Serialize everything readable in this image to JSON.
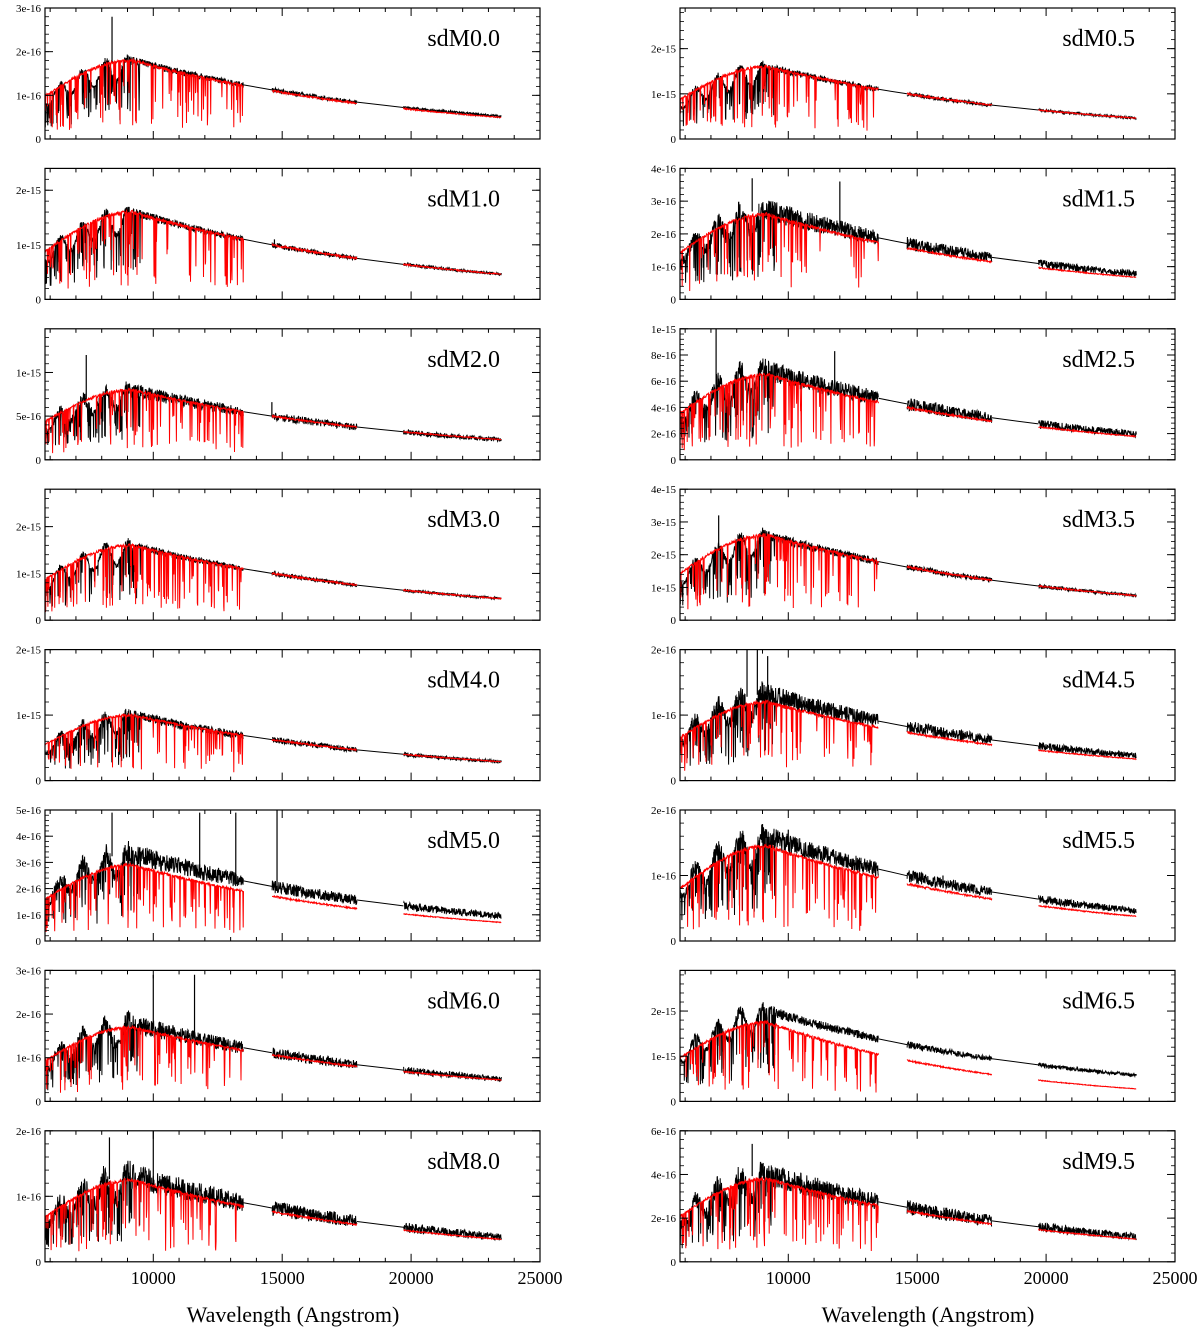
{
  "chart_data": {
    "type": "line",
    "xlabel": "Wavelength (Angstrom)",
    "xlim": [
      5800,
      25000
    ],
    "x_ticks": [
      10000,
      15000,
      20000,
      25000
    ],
    "x_tick_labels": [
      "10000",
      "15000",
      "20000",
      "25000"
    ],
    "series_colors": {
      "observed": "#000000",
      "model": "#ff0000"
    },
    "panels": [
      {
        "label": "sdM0.0",
        "column": "left",
        "ylim": [
          0,
          3e-16
        ],
        "y_ticks": [
          0,
          1e-16,
          2e-16,
          3e-16
        ],
        "y_tick_labels": [
          "0",
          "1e-16",
          "2e-16",
          "3e-16"
        ],
        "peak": 1.8e-16,
        "red_end": 0.95,
        "obs_end": 1.0,
        "obs_noise": 0.05,
        "obs_spikes": [
          [
            8400,
            2.8e-16
          ]
        ]
      },
      {
        "label": "sdM0.5",
        "column": "right",
        "ylim": [
          0,
          2.9e-15
        ],
        "y_ticks": [
          0,
          1e-15,
          2e-15
        ],
        "y_tick_labels": [
          "0",
          "1e-15",
          "2e-15"
        ],
        "peak": 1.6e-15,
        "red_end": 1.0,
        "obs_end": 1.0,
        "obs_noise": 0.05,
        "obs_spikes": []
      },
      {
        "label": "sdM1.0",
        "column": "left",
        "ylim": [
          0,
          2.4e-15
        ],
        "y_ticks": [
          0,
          1e-15,
          2e-15
        ],
        "y_tick_labels": [
          "0",
          "1e-15",
          "2e-15"
        ],
        "peak": 1.6e-15,
        "red_end": 1.0,
        "obs_end": 1.0,
        "obs_noise": 0.05,
        "obs_spikes": [
          [
            14700,
            1.1e-15
          ]
        ]
      },
      {
        "label": "sdM1.5",
        "column": "right",
        "ylim": [
          0,
          4e-16
        ],
        "y_ticks": [
          0,
          1e-16,
          2e-16,
          3e-16,
          4e-16
        ],
        "y_tick_labels": [
          "0",
          "1e-16",
          "2e-16",
          "3e-16",
          "4e-16"
        ],
        "peak": 2.6e-16,
        "red_end": 0.9,
        "obs_end": 1.05,
        "obs_noise": 0.12,
        "obs_spikes": [
          [
            8600,
            3.7e-16
          ],
          [
            12000,
            3.6e-16
          ]
        ]
      },
      {
        "label": "sdM2.0",
        "column": "left",
        "ylim": [
          0,
          1.5e-15
        ],
        "y_ticks": [
          0,
          5e-16,
          1e-15
        ],
        "y_tick_labels": [
          "0",
          "5e-16",
          "1e-15"
        ],
        "peak": 8e-16,
        "red_end": 1.0,
        "obs_end": 1.0,
        "obs_noise": 0.1,
        "obs_spikes": [
          [
            7400,
            1.2e-15
          ],
          [
            14600,
            6.6e-16
          ]
        ]
      },
      {
        "label": "sdM2.5",
        "column": "right",
        "ylim": [
          0,
          1e-15
        ],
        "y_ticks": [
          0,
          2e-16,
          4e-16,
          6e-16,
          8e-16,
          1e-15
        ],
        "y_tick_labels": [
          "0",
          "2e-16",
          "4e-16",
          "6e-16",
          "8e-16",
          "1e-15"
        ],
        "peak": 6.5e-16,
        "red_end": 0.95,
        "obs_end": 1.05,
        "obs_noise": 0.12,
        "obs_spikes": [
          [
            7200,
            1e-15
          ],
          [
            11800,
            8.3e-16
          ]
        ]
      },
      {
        "label": "sdM3.0",
        "column": "left",
        "ylim": [
          0,
          2.8e-15
        ],
        "y_ticks": [
          0,
          1e-15,
          2e-15
        ],
        "y_tick_labels": [
          "0",
          "1e-15",
          "2e-15"
        ],
        "peak": 1.6e-15,
        "red_end": 1.0,
        "obs_end": 1.0,
        "obs_noise": 0.05,
        "obs_spikes": []
      },
      {
        "label": "sdM3.5",
        "column": "right",
        "ylim": [
          0,
          4e-15
        ],
        "y_ticks": [
          0,
          1e-15,
          2e-15,
          3e-15,
          4e-15
        ],
        "y_tick_labels": [
          "0",
          "1e-15",
          "2e-15",
          "3e-15",
          "4e-15"
        ],
        "peak": 2.6e-15,
        "red_end": 1.0,
        "obs_end": 1.0,
        "obs_noise": 0.06,
        "obs_spikes": [
          [
            7300,
            3.2e-15
          ]
        ]
      },
      {
        "label": "sdM4.0",
        "column": "left",
        "ylim": [
          0,
          2e-15
        ],
        "y_ticks": [
          0,
          1e-15,
          2e-15
        ],
        "y_tick_labels": [
          "0",
          "1e-15",
          "2e-15"
        ],
        "peak": 1e-15,
        "red_end": 1.0,
        "obs_end": 1.0,
        "obs_noise": 0.08,
        "obs_spikes": []
      },
      {
        "label": "sdM4.5",
        "column": "right",
        "ylim": [
          0,
          2e-16
        ],
        "y_ticks": [
          0,
          1e-16,
          2e-16
        ],
        "y_tick_labels": [
          "0",
          "1e-16",
          "2e-16"
        ],
        "peak": 1.2e-16,
        "red_end": 0.95,
        "obs_end": 1.1,
        "obs_noise": 0.12,
        "obs_spikes": [
          [
            8400,
            2e-16
          ],
          [
            8800,
            2e-16
          ],
          [
            9200,
            1.9e-16
          ]
        ]
      },
      {
        "label": "sdM5.0",
        "column": "left",
        "ylim": [
          0,
          5e-16
        ],
        "y_ticks": [
          0,
          1e-16,
          2e-16,
          3e-16,
          4e-16,
          5e-16
        ],
        "y_tick_labels": [
          "0",
          "1e-16",
          "2e-16",
          "3e-16",
          "4e-16",
          "5e-16"
        ],
        "peak": 2.9e-16,
        "red_end": 0.85,
        "obs_end": 1.15,
        "obs_noise": 0.12,
        "obs_spikes": [
          [
            8400,
            4.9e-16
          ],
          [
            11800,
            4.9e-16
          ],
          [
            13200,
            4.9e-16
          ],
          [
            14800,
            5e-16
          ]
        ]
      },
      {
        "label": "sdM5.5",
        "column": "right",
        "ylim": [
          0,
          2e-16
        ],
        "y_ticks": [
          0,
          1e-16,
          2e-16
        ],
        "y_tick_labels": [
          "0",
          "1e-16",
          "2e-16"
        ],
        "peak": 1.45e-16,
        "red_end": 0.9,
        "obs_end": 1.1,
        "obs_noise": 0.1,
        "obs_spikes": [
          [
            10000,
            1.7e-16
          ],
          [
            16000,
            1e-16
          ]
        ]
      },
      {
        "label": "sdM6.0",
        "column": "left",
        "ylim": [
          0,
          3e-16
        ],
        "y_ticks": [
          0,
          1e-16,
          2e-16,
          3e-16
        ],
        "y_tick_labels": [
          "0",
          "1e-16",
          "2e-16",
          "3e-16"
        ],
        "peak": 1.7e-16,
        "red_end": 1.0,
        "obs_end": 1.05,
        "obs_noise": 0.12,
        "obs_spikes": [
          [
            10000,
            2.9e-16
          ],
          [
            11600,
            2.9e-16
          ]
        ]
      },
      {
        "label": "sdM6.5",
        "column": "right",
        "ylim": [
          0,
          2.9e-15
        ],
        "y_ticks": [
          0,
          1e-15,
          2e-15
        ],
        "y_tick_labels": [
          "0",
          "1e-15",
          "2e-15"
        ],
        "peak": 1.75e-15,
        "red_end": 0.55,
        "obs_end": 1.15,
        "obs_noise": 0.06,
        "obs_spikes": []
      },
      {
        "label": "sdM8.0",
        "column": "left",
        "ylim": [
          0,
          2e-16
        ],
        "y_ticks": [
          0,
          1e-16,
          2e-16
        ],
        "y_tick_labels": [
          "0",
          "1e-16",
          "2e-16"
        ],
        "peak": 1.25e-16,
        "red_end": 0.95,
        "obs_end": 1.05,
        "obs_noise": 0.15,
        "obs_spikes": [
          [
            8300,
            1.9e-16
          ],
          [
            10000,
            2e-16
          ]
        ]
      },
      {
        "label": "sdM9.5",
        "column": "right",
        "ylim": [
          0,
          6e-16
        ],
        "y_ticks": [
          0,
          2e-16,
          4e-16,
          6e-16
        ],
        "y_tick_labels": [
          "0",
          "2e-16",
          "4e-16",
          "6e-16"
        ],
        "peak": 3.8e-16,
        "red_end": 0.95,
        "obs_end": 1.05,
        "obs_noise": 0.14,
        "obs_spikes": [
          [
            8600,
            5.4e-16
          ]
        ]
      }
    ]
  }
}
